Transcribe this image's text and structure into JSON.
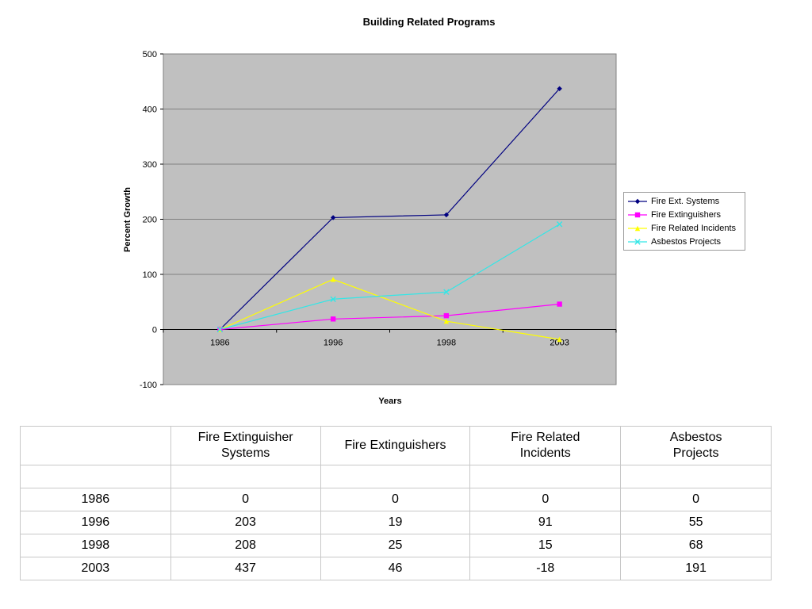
{
  "chart_data": {
    "type": "line",
    "title": "Building Related Programs",
    "xlabel": "Years",
    "ylabel": "Percent Growth",
    "categories": [
      "1986",
      "1996",
      "1998",
      "2003"
    ],
    "ylim": [
      -100,
      500
    ],
    "yticks": [
      500,
      400,
      300,
      200,
      100,
      0,
      -100
    ],
    "ytick_labels": [
      "500",
      "400",
      "300",
      "200",
      "100",
      "0",
      "-100"
    ],
    "grid": true,
    "legend_position": "right",
    "plot_background": "#c0c0c0",
    "series": [
      {
        "name": "Fire Ext. Systems",
        "values": [
          0,
          203,
          208,
          437
        ],
        "color": "#000080",
        "marker": "diamond"
      },
      {
        "name": "Fire Extinguishers",
        "values": [
          0,
          19,
          25,
          46
        ],
        "color": "#ff00ff",
        "marker": "square"
      },
      {
        "name": "Fire Related Incidents",
        "values": [
          0,
          91,
          15,
          -18
        ],
        "color": "#ffff00",
        "marker": "triangle"
      },
      {
        "name": "Asbestos Projects",
        "values": [
          0,
          55,
          68,
          191
        ],
        "color": "#33e6e6",
        "marker": "x"
      }
    ]
  },
  "table": {
    "headers": [
      "",
      "Fire Extinguisher Systems",
      "Fire Extinguishers",
      "Fire Related Incidents",
      "Asbestos Projects"
    ],
    "rows": [
      [
        "1986",
        "0",
        "0",
        "0",
        "0"
      ],
      [
        "1996",
        "203",
        "19",
        "91",
        "55"
      ],
      [
        "1998",
        "208",
        "25",
        "15",
        "68"
      ],
      [
        "2003",
        "437",
        "46",
        "-18",
        "191"
      ]
    ]
  }
}
